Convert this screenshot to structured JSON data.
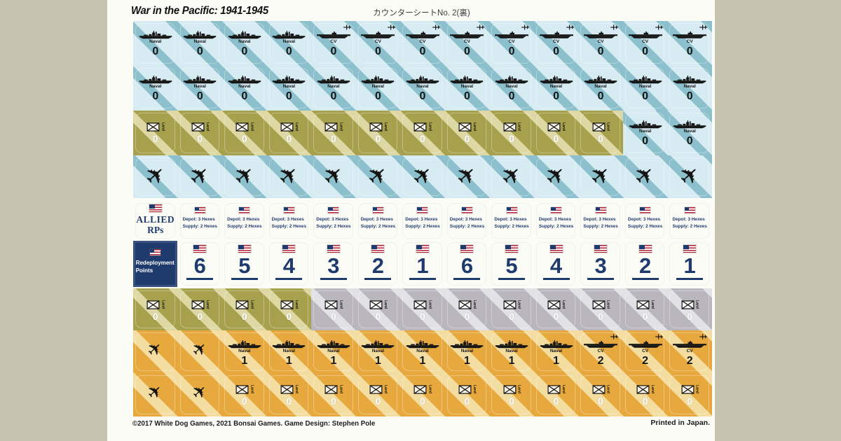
{
  "page": {
    "title": "War in the Pacific: 1941-1945",
    "sheet_label": "カウンターシートNo. 2(裏)",
    "footer_left": "©2017 White Dog Games, 2021 Bonsai Games. Game Design: Stephen Pole",
    "footer_right": "Printed in Japan."
  },
  "labels": {
    "naval": "Naval",
    "carrier": "CV",
    "land": "Land",
    "allied_rps_line1": "ALLIED",
    "allied_rps_line2": "RPs",
    "redeployment_line1": "Redeployment",
    "redeployment_line2": "Points",
    "depot_line1": "Depot: 3 Hexes",
    "depot_line2": "Supply: 2 Hexes"
  },
  "colors": {
    "background": "#c6c3ae",
    "paper": "#fcfcf7",
    "blue_counter": "#d7ebf2",
    "blue_stripe": "#8cc0cc",
    "olive_counter": "#a7a04c",
    "olive_stripe": "#ded8a4",
    "gray_counter": "#b9b7bd",
    "gray_stripe": "#e2e1e5",
    "orange_counter": "#e7a93e",
    "orange_stripe": "#f4dda1",
    "navy": "#1f3a6d",
    "flag_red": "#b22234",
    "ink": "#151515"
  },
  "rows": [
    {
      "id": "row-1",
      "counters": [
        {
          "type": "naval",
          "theme": "blue",
          "value": "0"
        },
        {
          "type": "naval",
          "theme": "blue",
          "value": "0"
        },
        {
          "type": "naval",
          "theme": "blue",
          "value": "0"
        },
        {
          "type": "naval",
          "theme": "blue",
          "value": "0"
        },
        {
          "type": "cv",
          "theme": "blue",
          "value": "0"
        },
        {
          "type": "cv",
          "theme": "blue",
          "value": "0"
        },
        {
          "type": "cv",
          "theme": "blue",
          "value": "0"
        },
        {
          "type": "cv",
          "theme": "blue",
          "value": "0"
        },
        {
          "type": "cv",
          "theme": "blue",
          "value": "0"
        },
        {
          "type": "cv",
          "theme": "blue",
          "value": "0"
        },
        {
          "type": "cv",
          "theme": "blue",
          "value": "0"
        },
        {
          "type": "cv",
          "theme": "blue",
          "value": "0"
        },
        {
          "type": "cv",
          "theme": "blue",
          "value": "0"
        }
      ]
    },
    {
      "id": "row-2",
      "counters": [
        {
          "type": "naval",
          "theme": "blue",
          "value": "0"
        },
        {
          "type": "naval",
          "theme": "blue",
          "value": "0"
        },
        {
          "type": "naval",
          "theme": "blue",
          "value": "0"
        },
        {
          "type": "naval",
          "theme": "blue",
          "value": "0"
        },
        {
          "type": "naval",
          "theme": "blue",
          "value": "0"
        },
        {
          "type": "naval",
          "theme": "blue",
          "value": "0"
        },
        {
          "type": "naval",
          "theme": "blue",
          "value": "0"
        },
        {
          "type": "naval",
          "theme": "blue",
          "value": "0"
        },
        {
          "type": "naval",
          "theme": "blue",
          "value": "0"
        },
        {
          "type": "naval",
          "theme": "blue",
          "value": "0"
        },
        {
          "type": "naval",
          "theme": "blue",
          "value": "0"
        },
        {
          "type": "naval",
          "theme": "blue",
          "value": "0"
        },
        {
          "type": "naval",
          "theme": "blue",
          "value": "0"
        }
      ]
    },
    {
      "id": "row-3",
      "counters": [
        {
          "type": "land",
          "theme": "olive",
          "value": "0"
        },
        {
          "type": "land",
          "theme": "olive",
          "value": "0"
        },
        {
          "type": "land",
          "theme": "olive",
          "value": "0"
        },
        {
          "type": "land",
          "theme": "olive",
          "value": "0"
        },
        {
          "type": "land",
          "theme": "olive",
          "value": "0"
        },
        {
          "type": "land",
          "theme": "olive",
          "value": "0"
        },
        {
          "type": "land",
          "theme": "olive",
          "value": "0"
        },
        {
          "type": "land",
          "theme": "olive",
          "value": "0"
        },
        {
          "type": "land",
          "theme": "olive",
          "value": "0"
        },
        {
          "type": "land",
          "theme": "olive",
          "value": "0"
        },
        {
          "type": "land",
          "theme": "olive",
          "value": "0"
        },
        {
          "type": "naval",
          "theme": "blue",
          "value": "0"
        },
        {
          "type": "naval",
          "theme": "blue",
          "value": "0"
        }
      ]
    },
    {
      "id": "row-4",
      "counters": [
        {
          "type": "bomber",
          "theme": "blue"
        },
        {
          "type": "bomber",
          "theme": "blue"
        },
        {
          "type": "bomber",
          "theme": "blue"
        },
        {
          "type": "bomber",
          "theme": "blue"
        },
        {
          "type": "bomber",
          "theme": "blue"
        },
        {
          "type": "bomber",
          "theme": "blue"
        },
        {
          "type": "bomber",
          "theme": "blue"
        },
        {
          "type": "bomber",
          "theme": "blue"
        },
        {
          "type": "bomber",
          "theme": "blue"
        },
        {
          "type": "bomber",
          "theme": "blue"
        },
        {
          "type": "bomber",
          "theme": "blue"
        },
        {
          "type": "bomber",
          "theme": "blue"
        },
        {
          "type": "bomber",
          "theme": "blue"
        }
      ]
    },
    {
      "id": "row-5",
      "counters": [
        {
          "type": "rps",
          "theme": "white"
        },
        {
          "type": "depot",
          "theme": "white"
        },
        {
          "type": "depot",
          "theme": "white"
        },
        {
          "type": "depot",
          "theme": "white"
        },
        {
          "type": "depot",
          "theme": "white"
        },
        {
          "type": "depot",
          "theme": "white"
        },
        {
          "type": "depot",
          "theme": "white"
        },
        {
          "type": "depot",
          "theme": "white"
        },
        {
          "type": "depot",
          "theme": "white"
        },
        {
          "type": "depot",
          "theme": "white"
        },
        {
          "type": "depot",
          "theme": "white"
        },
        {
          "type": "depot",
          "theme": "white"
        },
        {
          "type": "depot",
          "theme": "white"
        }
      ]
    },
    {
      "id": "row-6",
      "counters": [
        {
          "type": "redeploy",
          "theme": "navy"
        },
        {
          "type": "number",
          "theme": "white",
          "value": "6"
        },
        {
          "type": "number",
          "theme": "white",
          "value": "5"
        },
        {
          "type": "number",
          "theme": "white",
          "value": "4"
        },
        {
          "type": "number",
          "theme": "white",
          "value": "3"
        },
        {
          "type": "number",
          "theme": "white",
          "value": "2"
        },
        {
          "type": "number",
          "theme": "white",
          "value": "1"
        },
        {
          "type": "number",
          "theme": "white",
          "value": "6"
        },
        {
          "type": "number",
          "theme": "white",
          "value": "5"
        },
        {
          "type": "number",
          "theme": "white",
          "value": "4"
        },
        {
          "type": "number",
          "theme": "white",
          "value": "3"
        },
        {
          "type": "number",
          "theme": "white",
          "value": "2"
        },
        {
          "type": "number",
          "theme": "white",
          "value": "1"
        }
      ]
    },
    {
      "id": "row-7",
      "counters": [
        {
          "type": "land",
          "theme": "olive",
          "value": "0"
        },
        {
          "type": "land",
          "theme": "olive",
          "value": "0"
        },
        {
          "type": "land",
          "theme": "olive",
          "value": "0"
        },
        {
          "type": "land",
          "theme": "olive",
          "value": "0"
        },
        {
          "type": "land",
          "theme": "gray",
          "value": "0"
        },
        {
          "type": "land",
          "theme": "gray",
          "value": "0"
        },
        {
          "type": "land",
          "theme": "gray",
          "value": "0"
        },
        {
          "type": "land",
          "theme": "gray",
          "value": "0"
        },
        {
          "type": "land",
          "theme": "gray",
          "value": "0"
        },
        {
          "type": "land",
          "theme": "gray",
          "value": "0"
        },
        {
          "type": "land",
          "theme": "gray",
          "value": "0"
        },
        {
          "type": "land",
          "theme": "gray",
          "value": "0"
        },
        {
          "type": "land",
          "theme": "gray",
          "value": "0"
        }
      ]
    },
    {
      "id": "row-8",
      "counters": [
        {
          "type": "fighter",
          "theme": "orange"
        },
        {
          "type": "fighter",
          "theme": "orange"
        },
        {
          "type": "naval",
          "theme": "orange",
          "value": "1"
        },
        {
          "type": "naval",
          "theme": "orange",
          "value": "1"
        },
        {
          "type": "naval",
          "theme": "orange",
          "value": "1"
        },
        {
          "type": "naval",
          "theme": "orange",
          "value": "1"
        },
        {
          "type": "naval",
          "theme": "orange",
          "value": "1"
        },
        {
          "type": "naval",
          "theme": "orange",
          "value": "1"
        },
        {
          "type": "naval",
          "theme": "orange",
          "value": "1"
        },
        {
          "type": "naval",
          "theme": "orange",
          "value": "1"
        },
        {
          "type": "cv",
          "theme": "orange",
          "value": "2"
        },
        {
          "type": "cv",
          "theme": "orange",
          "value": "2"
        },
        {
          "type": "cv",
          "theme": "orange",
          "value": "2"
        }
      ]
    },
    {
      "id": "row-9",
      "counters": [
        {
          "type": "fighter",
          "theme": "orange"
        },
        {
          "type": "fighter",
          "theme": "orange"
        },
        {
          "type": "land",
          "theme": "orange",
          "value": "0"
        },
        {
          "type": "land",
          "theme": "orange",
          "value": "0"
        },
        {
          "type": "land",
          "theme": "orange",
          "value": "0"
        },
        {
          "type": "land",
          "theme": "orange",
          "value": "0"
        },
        {
          "type": "land",
          "theme": "orange",
          "value": "0"
        },
        {
          "type": "land",
          "theme": "orange",
          "value": "0"
        },
        {
          "type": "land",
          "theme": "orange",
          "value": "0"
        },
        {
          "type": "land",
          "theme": "orange",
          "value": "0"
        },
        {
          "type": "land",
          "theme": "orange",
          "value": "0"
        },
        {
          "type": "land",
          "theme": "orange",
          "value": "0"
        },
        {
          "type": "land",
          "theme": "orange",
          "value": "0"
        }
      ]
    }
  ]
}
